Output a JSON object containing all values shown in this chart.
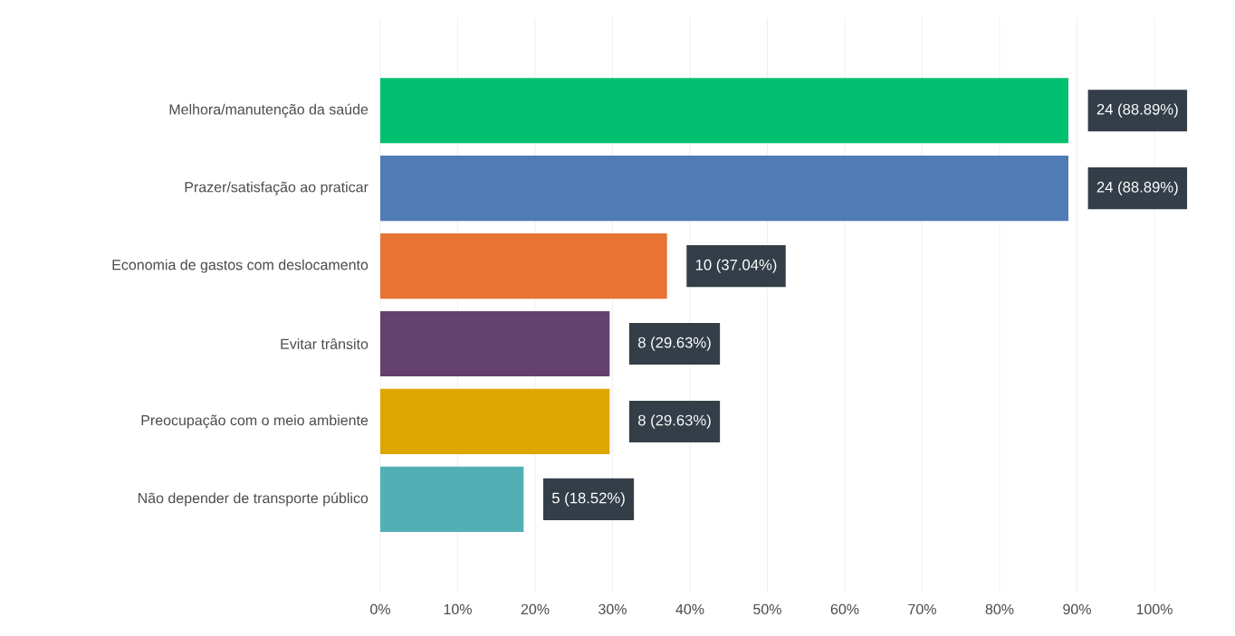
{
  "chart_data": {
    "type": "bar",
    "orientation": "horizontal",
    "categories": [
      "Melhora/manutenção da saúde",
      "Prazer/satisfação ao praticar",
      "Economia de gastos com deslocamento",
      "Evitar trânsito",
      "Preocupação com o meio ambiente",
      "Não depender de transporte público"
    ],
    "values": [
      88.89,
      88.89,
      37.04,
      29.63,
      29.63,
      18.52
    ],
    "colors": [
      "#00bf6f",
      "#507cb6",
      "#e87434",
      "#65416f",
      "#dea600",
      "#52b0b5"
    ],
    "value_labels": [
      "24 (88.89%)",
      "24 (88.89%)",
      "10 (37.04%)",
      "8 (29.63%)",
      "8 (29.63%)",
      "5 (18.52%)"
    ],
    "xlim": [
      0,
      100
    ],
    "xticks": [
      {
        "value": 0,
        "label": "0%"
      },
      {
        "value": 10,
        "label": "10%"
      },
      {
        "value": 20,
        "label": "20%"
      },
      {
        "value": 30,
        "label": "30%"
      },
      {
        "value": 40,
        "label": "40%"
      },
      {
        "value": 50,
        "label": "50%"
      },
      {
        "value": 60,
        "label": "60%"
      },
      {
        "value": 70,
        "label": "70%"
      },
      {
        "value": 80,
        "label": "80%"
      },
      {
        "value": 90,
        "label": "90%"
      },
      {
        "value": 100,
        "label": "100%"
      }
    ],
    "grid": "x"
  }
}
